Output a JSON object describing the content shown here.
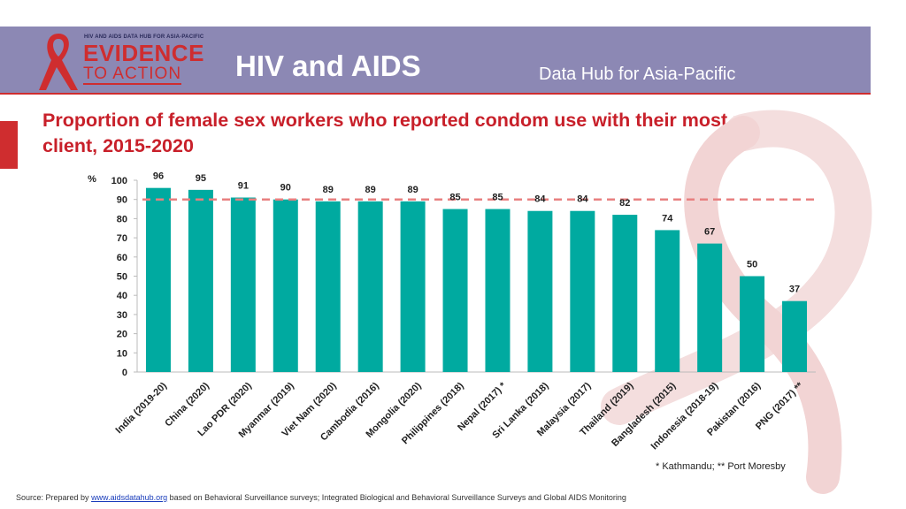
{
  "header": {
    "logo_top": "HIV AND AIDS DATA HUB FOR ASIA-PACIFIC",
    "logo_main": "EVIDENCE",
    "logo_sub": "TO ACTION",
    "title": "HIV and AIDS",
    "subtitle": "Data Hub for Asia-Pacific"
  },
  "colors": {
    "bar": "#00aaa0",
    "reference_line": "#e88080",
    "title": "#c8202a",
    "header_bg": "#8c88b4"
  },
  "chart_data": {
    "type": "bar",
    "title": "Proportion of female sex workers who reported condom use with their most recent client, 2015-2020",
    "ylabel": "%",
    "ylim": [
      0,
      100
    ],
    "yticks": [
      0,
      10,
      20,
      30,
      40,
      50,
      60,
      70,
      80,
      90,
      100
    ],
    "reference_line": 90,
    "categories": [
      "India (2019-20)",
      "China (2020)",
      "Lao PDR (2020)",
      "Myanmar (2019)",
      "Viet Nam (2020)",
      "Cambodia (2016)",
      "Mongolia (2020)",
      "Philippines (2018)",
      "Nepal (2017) *",
      "Sri Lanka (2018)",
      "Malaysia (2017)",
      "Thailand (2019)",
      "Bangladesh (2015)",
      "Indonesia (2018-19)",
      "Pakistan (2016)",
      "PNG (2017) **"
    ],
    "values": [
      96,
      95,
      91,
      90,
      89,
      89,
      89,
      85,
      85,
      84,
      84,
      82,
      74,
      67,
      50,
      37
    ],
    "grid": false,
    "legend": "none"
  },
  "footnote": "* Kathmandu;    ** Port Moresby",
  "source": {
    "prefix": "Source: Prepared by ",
    "link": "www.aidsdatahub.org",
    "suffix": " based on Behavioral Surveillance surveys; Integrated Biological and Behavioral Surveillance Surveys and Global AIDS Monitoring"
  }
}
